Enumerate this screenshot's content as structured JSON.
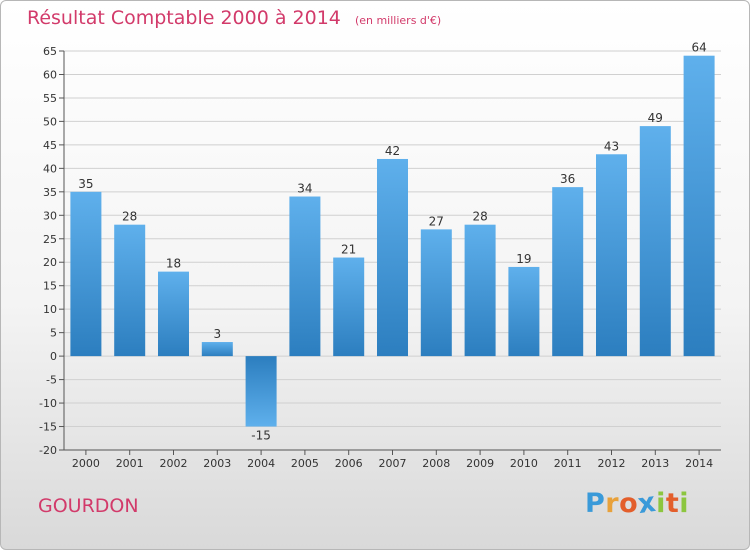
{
  "header": {
    "title": "Résultat Comptable 2000 à 2014",
    "subtitle": "(en milliers d'€)"
  },
  "footer": {
    "city": "GOURDON",
    "logo_letters": [
      "P",
      "r",
      "o",
      "x",
      "i",
      "t",
      "i"
    ],
    "logo_colors": [
      "#3a9ad9",
      "#e8a13a",
      "#e35e2b",
      "#3a9ad9",
      "#8cc63f",
      "#e35e2b",
      "#8cc63f"
    ]
  },
  "colors": {
    "bar_top": "#5fb0ec",
    "bar_bottom": "#2c7ebf",
    "grid": "#d0d0d0",
    "axis": "#555555",
    "title": "#d23a6a"
  },
  "chart_data": {
    "type": "bar",
    "categories": [
      "2000",
      "2001",
      "2002",
      "2003",
      "2004",
      "2005",
      "2006",
      "2007",
      "2008",
      "2009",
      "2010",
      "2011",
      "2012",
      "2013",
      "2014"
    ],
    "values": [
      35,
      28,
      18,
      3,
      -15,
      34,
      21,
      42,
      27,
      28,
      19,
      36,
      43,
      49,
      64
    ],
    "ylim": [
      -20,
      65
    ],
    "yticks": [
      -20,
      -15,
      -10,
      -5,
      0,
      5,
      10,
      15,
      20,
      25,
      30,
      35,
      40,
      45,
      50,
      55,
      60,
      65
    ],
    "grid": true,
    "xlabel": "",
    "ylabel": ""
  }
}
